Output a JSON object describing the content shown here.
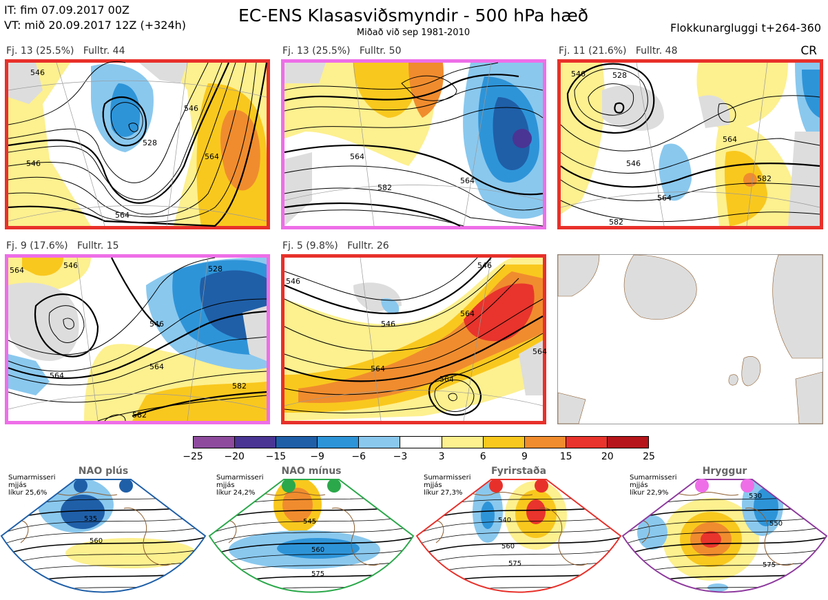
{
  "header": {
    "line1": "IT: fim 07.09.2017 00Z",
    "line2": "VT: mið 20.09.2017 12Z  (+324h)",
    "title": "EC-ENS Klasasviðsmyndir - 500 hPa hæð",
    "subtitle": "Miðað við sep 1981-2010",
    "window": "Flokkunargluggi t+264-360",
    "cr": "CR"
  },
  "panels": [
    {
      "label": "Fj. 13 (25.5%)",
      "fulltr": "Fulltr. 44",
      "border": "#e8302a",
      "contours": [
        "546",
        "546",
        "564",
        "564",
        "528",
        "546"
      ]
    },
    {
      "label": "Fj. 13 (25.5%)",
      "fulltr": "Fulltr. 50",
      "border": "#ee6ee8",
      "contours": [
        "564",
        "582",
        "564"
      ]
    },
    {
      "label": "Fj. 11 (21.6%)",
      "fulltr": "Fulltr. 48",
      "border": "#e8302a",
      "contours": [
        "528",
        "546",
        "546",
        "564",
        "582",
        "564",
        "582"
      ]
    },
    {
      "label": "Fj. 9 (17.6%)",
      "fulltr": "Fulltr. 15",
      "border": "#ee6ee8",
      "contours": [
        "564",
        "546",
        "546",
        "564",
        "564",
        "582",
        "528",
        "582"
      ]
    },
    {
      "label": "Fj. 5 (9.8%)",
      "fulltr": "Fulltr. 26",
      "border": "#e8302a",
      "contours": [
        "546",
        "546",
        "564",
        "546",
        "564",
        "564",
        "564"
      ]
    }
  ],
  "colorbar": {
    "colors": [
      "#8e4b9e",
      "#4a3594",
      "#1f5fa8",
      "#2e94d8",
      "#8ac8ee",
      "#ffffff",
      "#fdf08f",
      "#f9c81e",
      "#f08c2e",
      "#e8342c",
      "#b5151b"
    ],
    "ticks": [
      "−25",
      "−20",
      "−15",
      "−9",
      "−6",
      "−3",
      "3",
      "6",
      "9",
      "15",
      "20",
      "25"
    ]
  },
  "regimes": [
    {
      "title": "NAO plús",
      "line1": "Sumarmisseri",
      "line2": "mjjás",
      "line3": "líkur 25,6%",
      "dot": "#1f5fa8",
      "outline": "#1f5fa8",
      "contours": [
        "535",
        "560"
      ]
    },
    {
      "title": "NAO mínus",
      "line1": "Sumarmisseri",
      "line2": "mjjás",
      "line3": "líkur 24,2%",
      "dot": "#2aa84a",
      "outline": "#2aa84a",
      "contours": [
        "545",
        "560",
        "575"
      ]
    },
    {
      "title": "Fyrirstaða",
      "line1": "Sumarmisseri",
      "line2": "mjjás",
      "line3": "líkur 27,3%",
      "dot": "#e8302a",
      "outline": "#e8302a",
      "contours": [
        "540",
        "560",
        "575"
      ]
    },
    {
      "title": "Hryggur",
      "line1": "Sumarmisseri",
      "line2": "mjjás",
      "line3": "líkur 22,9%",
      "dot": "#ee6ee8",
      "outline": "#8e3a9e",
      "contours": [
        "530",
        "550",
        "575"
      ]
    }
  ]
}
